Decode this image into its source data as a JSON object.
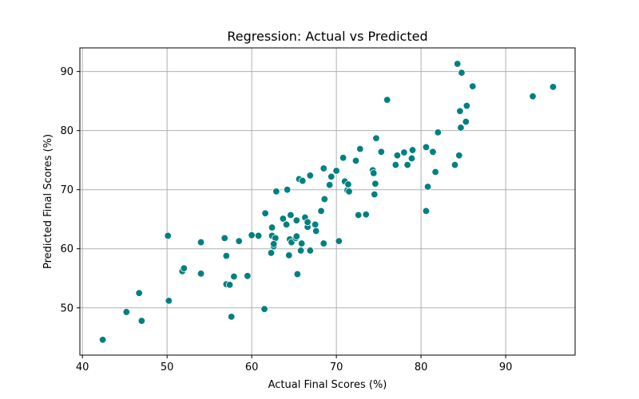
{
  "chart_data": {
    "type": "scatter",
    "title": "Regression: Actual vs Predicted",
    "xlabel": "Actual Final Scores (%)",
    "ylabel": "Predicted Final Scores (%)",
    "xlim": [
      39.7,
      98.2
    ],
    "ylim": [
      42.0,
      94.0
    ],
    "xticks": [
      40,
      50,
      60,
      70,
      80,
      90
    ],
    "yticks": [
      50,
      60,
      70,
      80,
      90
    ],
    "grid": true,
    "marker_color": "#008080",
    "marker_edge": "#ffffff",
    "points": [
      [
        42.4,
        44.6
      ],
      [
        45.2,
        49.3
      ],
      [
        46.7,
        52.5
      ],
      [
        47.0,
        47.8
      ],
      [
        50.1,
        62.2
      ],
      [
        50.2,
        51.2
      ],
      [
        51.8,
        56.2
      ],
      [
        52.0,
        56.7
      ],
      [
        54.0,
        55.8
      ],
      [
        54.0,
        61.1
      ],
      [
        56.8,
        61.8
      ],
      [
        57.0,
        58.8
      ],
      [
        57.0,
        54.0
      ],
      [
        57.4,
        53.9
      ],
      [
        57.6,
        48.5
      ],
      [
        57.9,
        55.3
      ],
      [
        58.5,
        61.3
      ],
      [
        59.5,
        55.4
      ],
      [
        60.0,
        62.3
      ],
      [
        60.8,
        62.2
      ],
      [
        61.5,
        49.8
      ],
      [
        61.6,
        66.0
      ],
      [
        62.3,
        59.3
      ],
      [
        62.4,
        63.6
      ],
      [
        62.4,
        62.2
      ],
      [
        62.8,
        61.8
      ],
      [
        62.6,
        60.4
      ],
      [
        62.6,
        60.8
      ],
      [
        62.9,
        69.7
      ],
      [
        63.7,
        65.1
      ],
      [
        64.1,
        64.1
      ],
      [
        64.2,
        70.0
      ],
      [
        64.4,
        58.9
      ],
      [
        64.5,
        61.6
      ],
      [
        64.6,
        65.7
      ],
      [
        64.7,
        61.1
      ],
      [
        65.2,
        61.8
      ],
      [
        65.3,
        62.1
      ],
      [
        65.3,
        64.8
      ],
      [
        65.4,
        55.7
      ],
      [
        65.6,
        71.8
      ],
      [
        65.8,
        59.7
      ],
      [
        65.9,
        60.9
      ],
      [
        66.0,
        71.5
      ],
      [
        66.3,
        65.3
      ],
      [
        66.6,
        63.7
      ],
      [
        66.6,
        64.5
      ],
      [
        66.9,
        59.7
      ],
      [
        66.9,
        72.4
      ],
      [
        67.5,
        64.1
      ],
      [
        67.6,
        63.0
      ],
      [
        68.2,
        66.4
      ],
      [
        68.5,
        73.6
      ],
      [
        68.5,
        60.9
      ],
      [
        68.6,
        68.4
      ],
      [
        69.2,
        70.8
      ],
      [
        69.4,
        72.2
      ],
      [
        70.0,
        73.2
      ],
      [
        70.3,
        61.3
      ],
      [
        70.8,
        75.4
      ],
      [
        71.0,
        71.4
      ],
      [
        71.3,
        69.9
      ],
      [
        71.4,
        70.9
      ],
      [
        71.5,
        69.7
      ],
      [
        72.3,
        74.9
      ],
      [
        72.6,
        65.7
      ],
      [
        72.8,
        76.9
      ],
      [
        73.5,
        65.8
      ],
      [
        74.3,
        73.3
      ],
      [
        74.4,
        72.8
      ],
      [
        74.5,
        69.2
      ],
      [
        74.6,
        71.0
      ],
      [
        74.7,
        78.7
      ],
      [
        75.3,
        76.4
      ],
      [
        76.0,
        85.2
      ],
      [
        77.0,
        74.2
      ],
      [
        77.2,
        75.8
      ],
      [
        78.0,
        76.3
      ],
      [
        78.4,
        74.2
      ],
      [
        78.9,
        75.3
      ],
      [
        79.0,
        76.7
      ],
      [
        80.6,
        77.2
      ],
      [
        80.6,
        66.4
      ],
      [
        80.8,
        70.5
      ],
      [
        81.4,
        76.4
      ],
      [
        81.7,
        73.0
      ],
      [
        82.0,
        79.7
      ],
      [
        84.0,
        74.2
      ],
      [
        84.3,
        91.3
      ],
      [
        84.5,
        75.8
      ],
      [
        84.6,
        83.3
      ],
      [
        84.7,
        80.5
      ],
      [
        84.8,
        89.8
      ],
      [
        85.3,
        81.5
      ],
      [
        85.4,
        84.2
      ],
      [
        86.1,
        87.5
      ],
      [
        93.2,
        85.8
      ],
      [
        95.6,
        87.4
      ]
    ]
  }
}
